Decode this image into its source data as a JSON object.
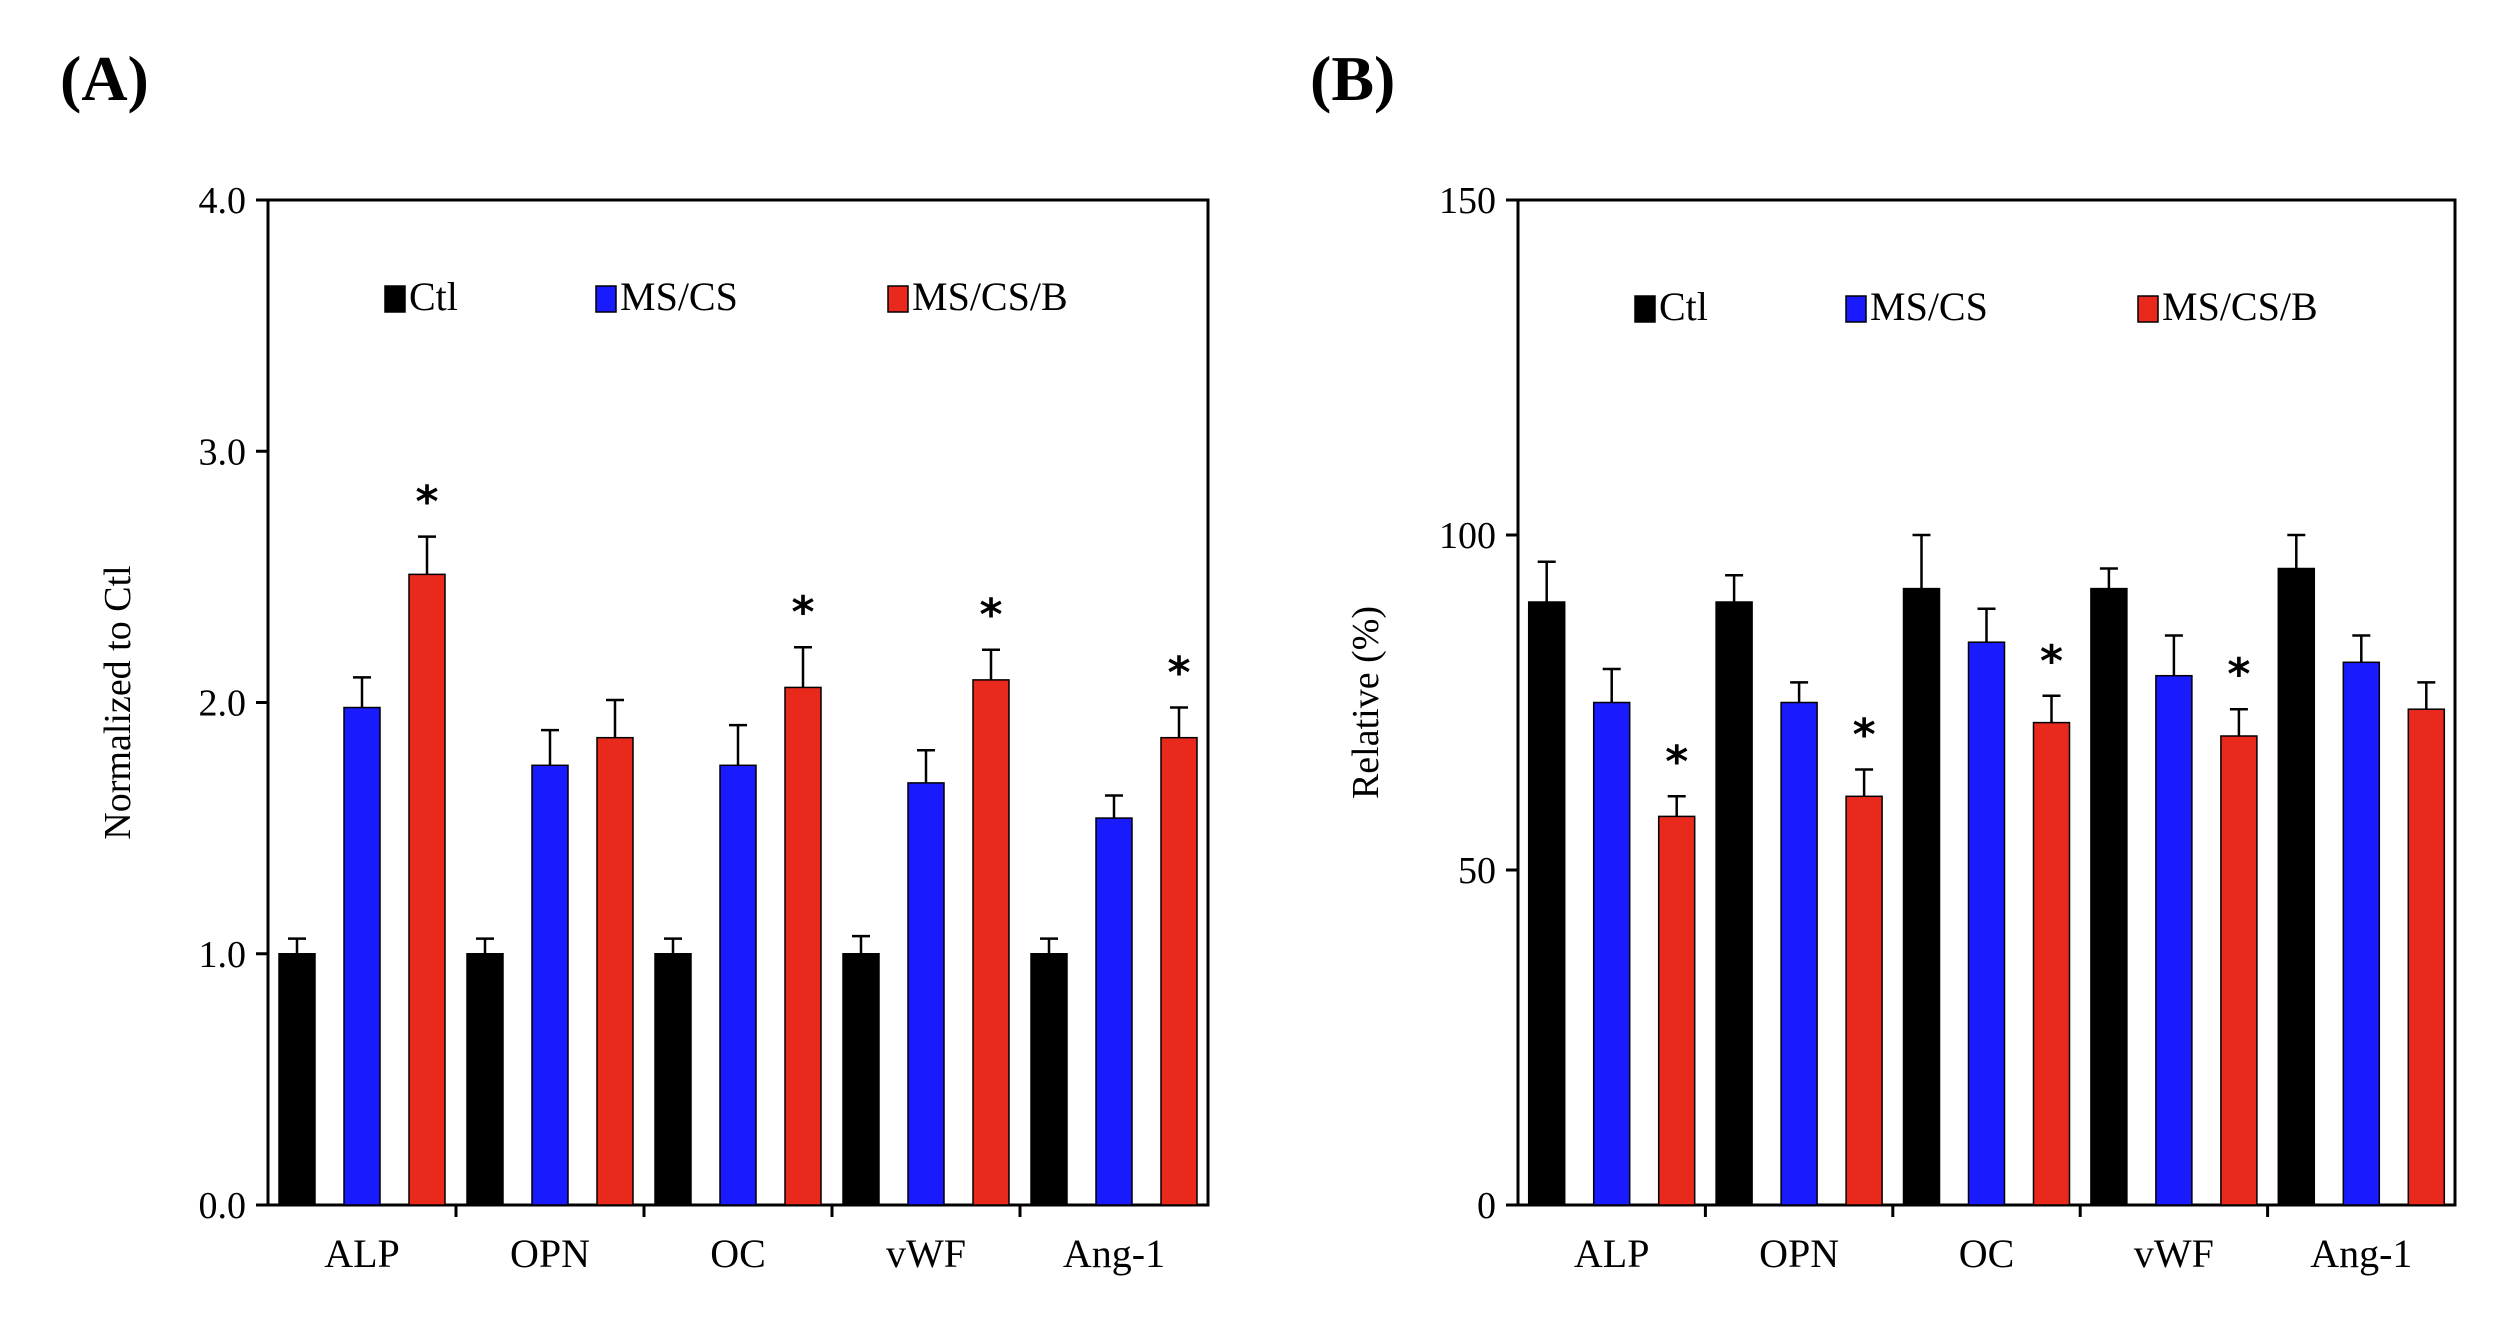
{
  "chart_data": [
    {
      "type": "bar",
      "panel_label": "(A)",
      "title": "",
      "xlabel": "",
      "ylabel": "Normalized to Ctl",
      "ylim": [
        0,
        4
      ],
      "yticks": [
        "0.0",
        "1.0",
        "2.0",
        "3.0",
        "4.0"
      ],
      "ytick_values": [
        0,
        1,
        2,
        3,
        4
      ],
      "categories": [
        "ALP",
        "OPN",
        "OC",
        "vWF",
        "Ang-1"
      ],
      "legend_position": "top",
      "series": [
        {
          "name": "Ctl",
          "color": "#000000",
          "values": [
            1.0,
            1.0,
            1.0,
            1.0,
            1.0
          ],
          "errors": [
            0.06,
            0.06,
            0.06,
            0.07,
            0.06
          ]
        },
        {
          "name": "MS/CS",
          "color": "#1a1aff",
          "values": [
            1.98,
            1.75,
            1.75,
            1.68,
            1.54
          ],
          "errors": [
            0.12,
            0.14,
            0.16,
            0.13,
            0.09
          ]
        },
        {
          "name": "MS/CS/B",
          "color": "#e8291c",
          "values": [
            2.51,
            1.86,
            2.06,
            2.09,
            1.86
          ],
          "errors": [
            0.15,
            0.15,
            0.16,
            0.12,
            0.12
          ]
        }
      ],
      "significance": [
        {
          "category": "ALP",
          "series": "MS/CS/B",
          "label": "*"
        },
        {
          "category": "OC",
          "series": "MS/CS/B",
          "label": "*"
        },
        {
          "category": "vWF",
          "series": "MS/CS/B",
          "label": "*"
        },
        {
          "category": "Ang-1",
          "series": "MS/CS/B",
          "label": "*"
        }
      ]
    },
    {
      "type": "bar",
      "panel_label": "(B)",
      "title": "",
      "xlabel": "",
      "ylabel": "Relative (%)",
      "ylim": [
        0,
        150
      ],
      "yticks": [
        "0",
        "50",
        "100",
        "150"
      ],
      "ytick_values": [
        0,
        50,
        100,
        150
      ],
      "categories": [
        "ALP",
        "OPN",
        "OC",
        "vWF",
        "Ang-1"
      ],
      "legend_position": "top",
      "series": [
        {
          "name": "Ctl",
          "color": "#000000",
          "values": [
            90,
            90,
            92,
            92,
            95
          ],
          "errors": [
            6,
            4,
            8,
            3,
            5
          ]
        },
        {
          "name": "MS/CS",
          "color": "#1a1aff",
          "values": [
            75,
            75,
            84,
            79,
            81
          ],
          "errors": [
            5,
            3,
            5,
            6,
            4
          ]
        },
        {
          "name": "MS/CS/B",
          "color": "#e8291c",
          "values": [
            58,
            61,
            72,
            70,
            74
          ],
          "errors": [
            3,
            4,
            4,
            4,
            4
          ]
        }
      ],
      "significance": [
        {
          "category": "ALP",
          "series": "MS/CS/B",
          "label": "*"
        },
        {
          "category": "OPN",
          "series": "MS/CS/B",
          "label": "*"
        },
        {
          "category": "OC",
          "series": "MS/CS/B",
          "label": "*"
        },
        {
          "category": "vWF",
          "series": "MS/CS/B",
          "label": "*"
        }
      ]
    }
  ]
}
